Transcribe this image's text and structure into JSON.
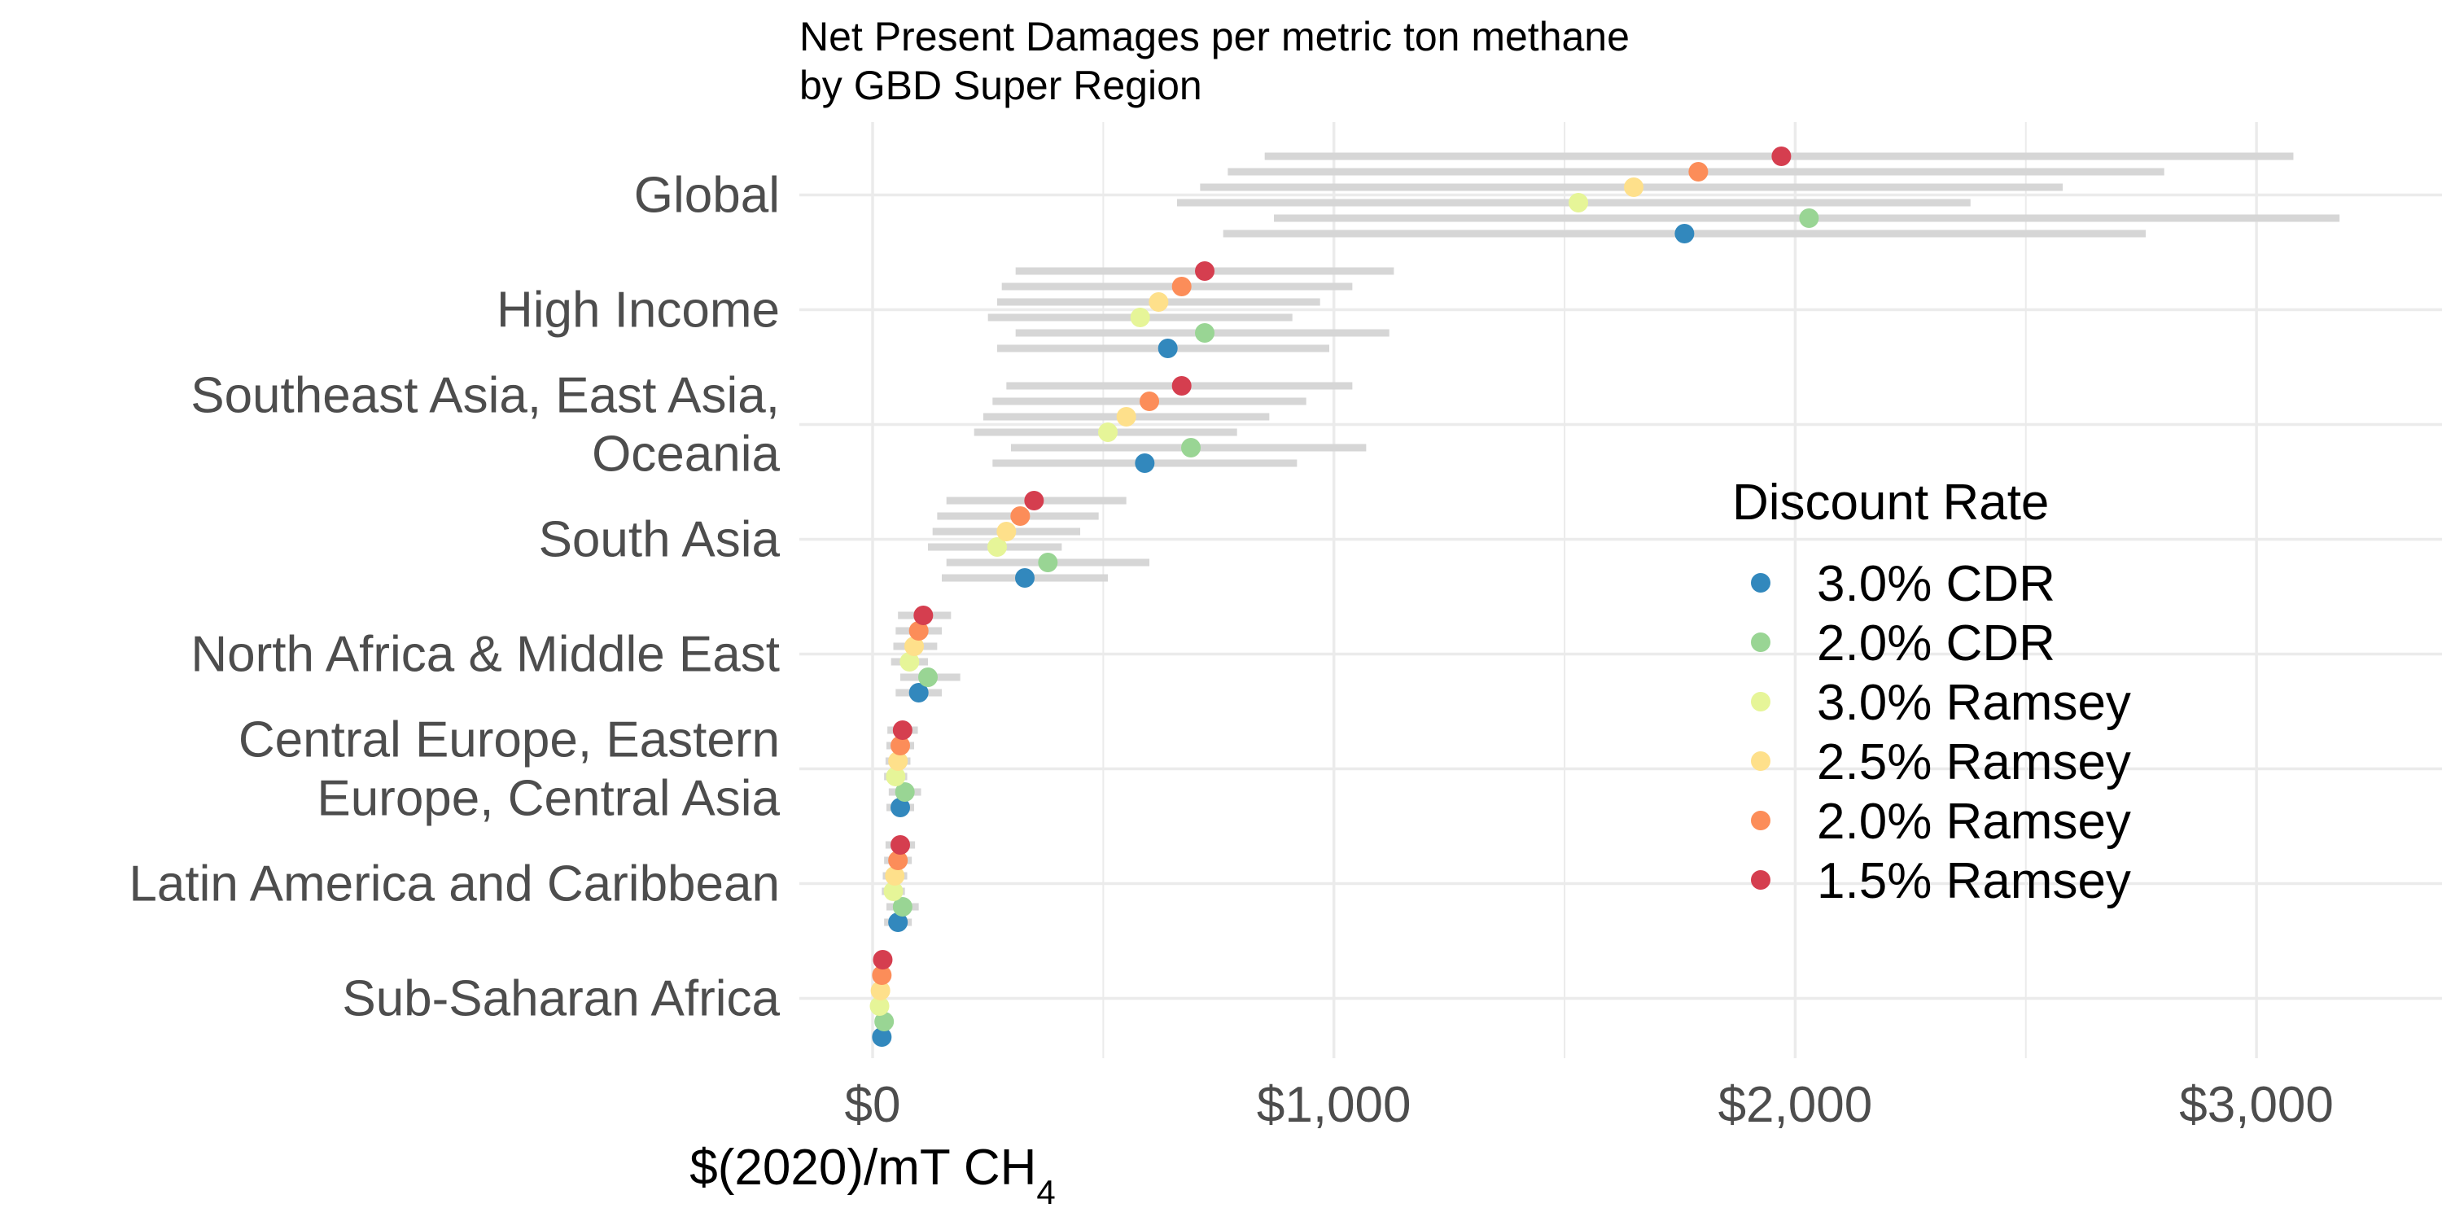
{
  "chart_data": {
    "type": "scatter",
    "title": "Net Present Damages per metric ton methane",
    "subtitle": "by GBD Super Region",
    "xlabel": "$(2020)/mT CH",
    "xlabel_sub": "4",
    "xlim": [
      -150,
      3350
    ],
    "x_ticks": [
      0,
      1000,
      2000,
      3000
    ],
    "x_tick_labels": [
      "$0",
      "$1,000",
      "$2,000",
      "$3,000"
    ],
    "grid": true,
    "legend_title": "Discount Rate",
    "legend_position": "right",
    "series": [
      {
        "name": "3.0% CDR",
        "color": "#3288bd"
      },
      {
        "name": "2.0% CDR",
        "color": "#99d594"
      },
      {
        "name": "3.0% Ramsey",
        "color": "#e6f598"
      },
      {
        "name": "2.5% Ramsey",
        "color": "#fee08b"
      },
      {
        "name": "2.0% Ramsey",
        "color": "#fc8d59"
      },
      {
        "name": "1.5% Ramsey",
        "color": "#d53e4f"
      }
    ],
    "categories": [
      {
        "label_lines": [
          "Global"
        ],
        "values": [
          1760,
          2030,
          1530,
          1650,
          1790,
          1970
        ],
        "lower": [
          760,
          870,
          660,
          710,
          770,
          850
        ],
        "upper": [
          2760,
          3180,
          2380,
          2580,
          2800,
          3080
        ]
      },
      {
        "label_lines": [
          "High Income"
        ],
        "values": [
          640,
          720,
          580,
          620,
          670,
          720
        ],
        "lower": [
          270,
          310,
          250,
          270,
          280,
          310
        ],
        "upper": [
          990,
          1120,
          910,
          970,
          1040,
          1130
        ]
      },
      {
        "label_lines": [
          "Southeast Asia, East Asia,",
          "Oceania"
        ],
        "values": [
          590,
          690,
          510,
          550,
          600,
          670
        ],
        "lower": [
          260,
          300,
          220,
          240,
          260,
          290
        ],
        "upper": [
          920,
          1070,
          790,
          860,
          940,
          1040
        ]
      },
      {
        "label_lines": [
          "South Asia"
        ],
        "values": [
          330,
          380,
          270,
          290,
          320,
          350
        ],
        "lower": [
          150,
          160,
          120,
          130,
          140,
          160
        ],
        "upper": [
          510,
          600,
          410,
          450,
          490,
          550
        ]
      },
      {
        "label_lines": [
          "North Africa & Middle East"
        ],
        "values": [
          100,
          120,
          80,
          90,
          100,
          110
        ],
        "lower": [
          50,
          60,
          40,
          45,
          50,
          55
        ],
        "upper": [
          150,
          190,
          120,
          140,
          150,
          170
        ]
      },
      {
        "label_lines": [
          "Central Europe, Eastern",
          "Europe, Central Asia"
        ],
        "values": [
          60,
          70,
          50,
          55,
          60,
          65
        ],
        "lower": [
          30,
          35,
          25,
          28,
          30,
          32
        ],
        "upper": [
          90,
          105,
          75,
          82,
          90,
          98
        ]
      },
      {
        "label_lines": [
          "Latin America and Caribbean"
        ],
        "values": [
          55,
          65,
          45,
          48,
          55,
          60
        ],
        "lower": [
          25,
          30,
          20,
          22,
          25,
          28
        ],
        "upper": [
          85,
          100,
          70,
          75,
          85,
          92
        ]
      },
      {
        "label_lines": [
          "Sub-Saharan Africa"
        ],
        "values": [
          20,
          25,
          15,
          17,
          20,
          22
        ],
        "lower": [
          10,
          12,
          8,
          9,
          10,
          11
        ],
        "upper": [
          30,
          38,
          23,
          26,
          30,
          33
        ]
      }
    ]
  }
}
